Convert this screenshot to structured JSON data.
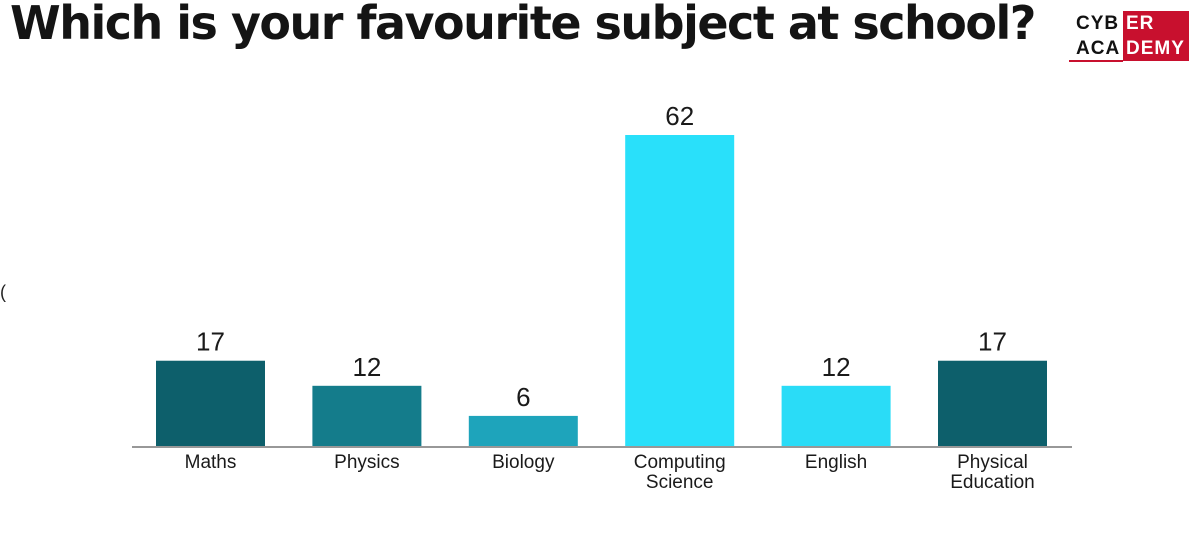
{
  "logo": {
    "line1_a": "CYB",
    "line1_b": "ER",
    "line2_a": "ACA",
    "line2_b": "DEMY"
  },
  "stray_mark": "(",
  "chart_data": {
    "type": "bar",
    "title": "Which is your favourite subject at school?",
    "xlabel": "",
    "ylabel": "",
    "categories": [
      [
        "Maths"
      ],
      [
        "Physics"
      ],
      [
        "Biology"
      ],
      [
        "Computing",
        "Science"
      ],
      [
        "English"
      ],
      [
        "Physical",
        "Education"
      ]
    ],
    "values": [
      17,
      12,
      6,
      62,
      12,
      17
    ],
    "colors": [
      "#0d5f6b",
      "#147c8b",
      "#1ea4bb",
      "#29e0fa",
      "#2adcf7",
      "#0d5f6b"
    ],
    "ylim": [
      0,
      62
    ],
    "grid": false,
    "legend": "none",
    "data_labels": true
  }
}
